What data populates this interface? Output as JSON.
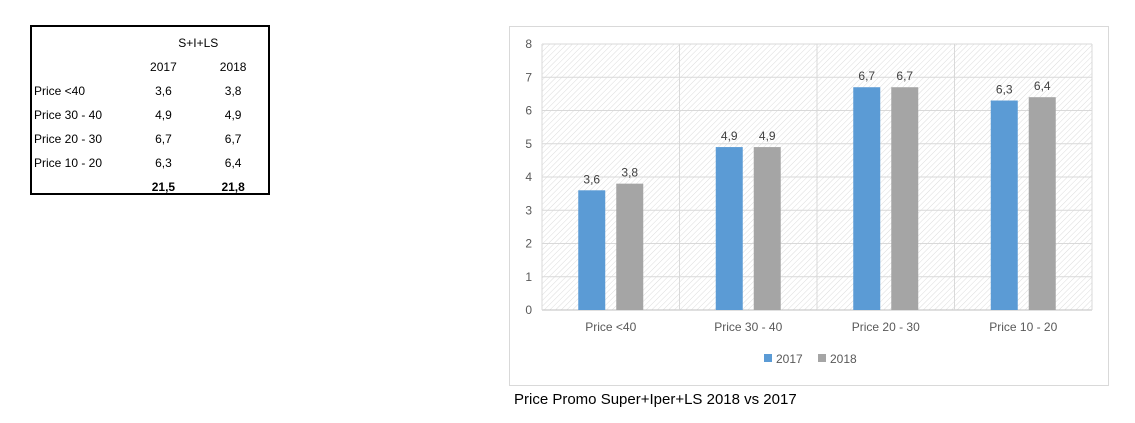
{
  "table": {
    "group_header": "S+I+LS",
    "columns": [
      "2017",
      "2018"
    ],
    "rows": [
      {
        "label": "Price <40",
        "v2017": "3,6",
        "v2018": "3,8"
      },
      {
        "label": "Price 30 - 40",
        "v2017": "4,9",
        "v2018": "4,9"
      },
      {
        "label": "Price 20 - 30",
        "v2017": "6,7",
        "v2018": "6,7"
      },
      {
        "label": "Price 10 - 20",
        "v2017": "6,3",
        "v2018": "6,4"
      }
    ],
    "total": {
      "v2017": "21,5",
      "v2018": "21,8"
    }
  },
  "caption": "Price Promo Super+Iper+LS 2018 vs 2017",
  "chart_data": {
    "type": "bar",
    "title": "",
    "xlabel": "",
    "ylabel": "",
    "categories": [
      "Price <40",
      "Price 30 - 40",
      "Price 20 - 30",
      "Price 10 - 20"
    ],
    "series": [
      {
        "name": "2017",
        "values": [
          3.6,
          4.9,
          6.7,
          6.3
        ],
        "labels": [
          "3,6",
          "4,9",
          "6,7",
          "6,3"
        ],
        "color": "#5b9bd5"
      },
      {
        "name": "2018",
        "values": [
          3.8,
          4.9,
          6.7,
          6.4
        ],
        "labels": [
          "3,8",
          "4,9",
          "6,7",
          "6,4"
        ],
        "color": "#a5a5a5"
      }
    ],
    "ylim": [
      0,
      8
    ],
    "yticks": [
      0,
      1,
      2,
      3,
      4,
      5,
      6,
      7,
      8
    ],
    "grid": true,
    "legend": "bottom"
  }
}
